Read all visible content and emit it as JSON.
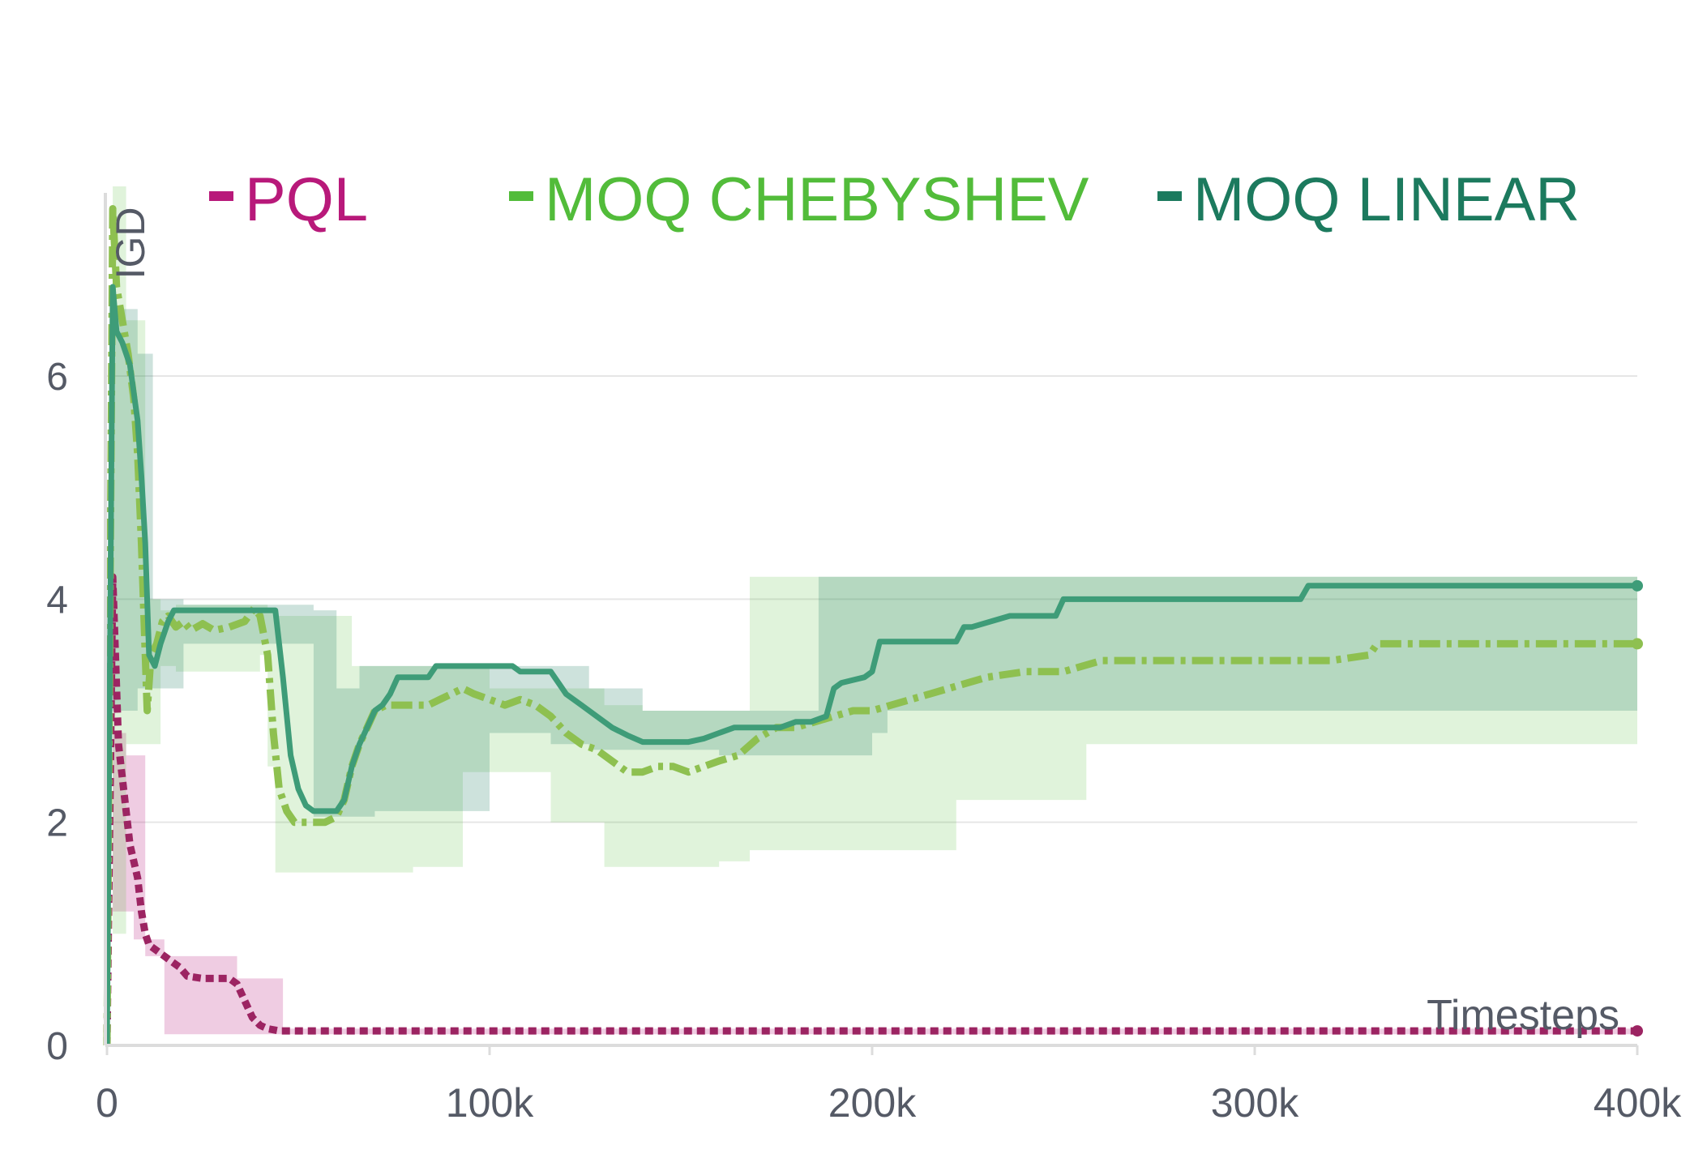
{
  "chart_data": {
    "type": "line",
    "xlabel": "Timesteps",
    "ylabel": "IGD",
    "xlim": [
      0,
      400000
    ],
    "ylim": [
      0,
      7.7
    ],
    "x_ticks": [
      0,
      100000,
      200000,
      300000,
      400000
    ],
    "x_tick_labels": [
      "0",
      "100k",
      "200k",
      "300k",
      "400k"
    ],
    "y_ticks": [
      0,
      2,
      4,
      6
    ],
    "y_tick_labels": [
      "0",
      "2",
      "4",
      "6"
    ],
    "grid": "horizontal",
    "legend_position": "top",
    "series": [
      {
        "name": "PQL",
        "color": "#b8197a",
        "line_color": "#9c2462",
        "dash": "dotted",
        "x": [
          0,
          1500,
          3000,
          6000,
          8000,
          9000,
          10000,
          11000,
          13000,
          15000,
          17000,
          19000,
          21000,
          25000,
          29000,
          32000,
          34000,
          36000,
          38000,
          40000,
          42000,
          45000,
          60000,
          100000,
          200000,
          300000,
          400000
        ],
        "y": [
          0,
          4.2,
          2.7,
          1.8,
          1.5,
          1.2,
          1.0,
          0.9,
          0.85,
          0.8,
          0.75,
          0.7,
          0.62,
          0.6,
          0.6,
          0.6,
          0.55,
          0.4,
          0.25,
          0.18,
          0.15,
          0.13,
          0.13,
          0.13,
          0.13,
          0.13,
          0.13
        ],
        "band": {
          "x": [
            1500,
            5000,
            7000,
            10000,
            15000,
            20000,
            30000,
            34000,
            36000,
            44000,
            46000,
            400000
          ],
          "lower": [
            1.2,
            1.2,
            0.95,
            0.8,
            0.1,
            0.1,
            0.1,
            0.1,
            0.1,
            0.1,
            0.1,
            0.1
          ],
          "upper": [
            2.8,
            2.6,
            2.6,
            0.95,
            0.8,
            0.8,
            0.8,
            0.6,
            0.6,
            0.6,
            0.15,
            0.15
          ]
        }
      },
      {
        "name": "MOQ CHEBYSHEV",
        "color": "#52bc3a",
        "line_color": "#8ec050",
        "dash": "dashdot",
        "x": [
          0,
          1500,
          2500,
          4000,
          5500,
          7000,
          8000,
          9000,
          10500,
          11500,
          13000,
          14500,
          16000,
          18000,
          20000,
          22000,
          25000,
          28000,
          32000,
          36000,
          38500,
          40000,
          42000,
          43500,
          45000,
          47000,
          49000,
          51000,
          54000,
          57000,
          60000,
          62000,
          64000,
          66000,
          68000,
          70000,
          73000,
          76000,
          80000,
          84000,
          87000,
          90000,
          93000,
          96000,
          100000,
          104000,
          108000,
          112000,
          116000,
          120000,
          124000,
          128000,
          132000,
          136000,
          140000,
          144000,
          148000,
          152000,
          156000,
          160000,
          165000,
          170000,
          175000,
          180000,
          185000,
          190000,
          195000,
          200000,
          205000,
          210000,
          215000,
          220000,
          225000,
          230000,
          240000,
          250000,
          255000,
          260000,
          280000,
          300000,
          320000,
          330000,
          332000,
          360000,
          400000
        ],
        "y": [
          0,
          7.5,
          6.8,
          6.5,
          6.2,
          5.8,
          5.3,
          4.5,
          3.0,
          3.5,
          3.6,
          3.8,
          3.85,
          3.75,
          3.8,
          3.72,
          3.78,
          3.72,
          3.75,
          3.8,
          3.92,
          3.85,
          3.5,
          2.8,
          2.3,
          2.1,
          2.0,
          2.0,
          2.0,
          2.0,
          2.05,
          2.2,
          2.5,
          2.7,
          2.85,
          3.0,
          3.05,
          3.05,
          3.05,
          3.05,
          3.1,
          3.15,
          3.2,
          3.15,
          3.1,
          3.05,
          3.1,
          3.05,
          2.95,
          2.8,
          2.7,
          2.65,
          2.55,
          2.45,
          2.45,
          2.5,
          2.5,
          2.45,
          2.5,
          2.55,
          2.6,
          2.75,
          2.85,
          2.85,
          2.9,
          2.95,
          3.0,
          3.0,
          3.05,
          3.1,
          3.15,
          3.2,
          3.25,
          3.3,
          3.35,
          3.35,
          3.4,
          3.45,
          3.45,
          3.45,
          3.45,
          3.5,
          3.6,
          3.6,
          3.6
        ],
        "band": {
          "x": [
            1500,
            5000,
            10000,
            14000,
            18000,
            28000,
            40000,
            42000,
            44000,
            64000,
            70000,
            80000,
            93000,
            100000,
            116000,
            130000,
            140000,
            160000,
            168000,
            188000,
            204000,
            222000,
            256000,
            400000
          ],
          "lower": [
            1.0,
            2.7,
            2.7,
            3.4,
            3.35,
            3.35,
            3.5,
            2.5,
            1.55,
            1.55,
            1.55,
            1.6,
            2.45,
            2.45,
            2.0,
            1.6,
            1.6,
            1.65,
            1.75,
            1.75,
            1.75,
            2.2,
            2.7,
            2.7
          ],
          "upper": [
            7.7,
            6.5,
            4.0,
            3.9,
            3.95,
            3.95,
            3.95,
            3.9,
            3.85,
            3.4,
            3.4,
            3.4,
            3.4,
            3.2,
            3.2,
            3.05,
            3.0,
            3.0,
            4.2,
            4.2,
            4.2,
            4.2,
            4.2,
            4.2
          ]
        }
      },
      {
        "name": "MOQ LINEAR",
        "color": "#1c7a5e",
        "line_color": "#3e9c78",
        "dash": "solid",
        "x": [
          0,
          1500,
          2500,
          4000,
          6000,
          8000,
          9000,
          10000,
          11000,
          12500,
          14000,
          16000,
          17500,
          20000,
          30000,
          40000,
          44000,
          46000,
          48000,
          50000,
          52000,
          54000,
          56000,
          58000,
          60000,
          62000,
          64000,
          66000,
          68000,
          70000,
          72000,
          74000,
          76000,
          80000,
          84000,
          86000,
          90000,
          100000,
          106000,
          108000,
          116000,
          118000,
          120000,
          124000,
          128000,
          132000,
          136000,
          140000,
          144000,
          148000,
          152000,
          156000,
          160000,
          164000,
          168000,
          172000,
          176000,
          180000,
          184000,
          188000,
          190000,
          192000,
          198000,
          200000,
          202000,
          212000,
          222000,
          224000,
          226000,
          236000,
          248000,
          250000,
          260000,
          270000,
          290000,
          312000,
          314000,
          340000,
          370000,
          400000
        ],
        "y": [
          0,
          6.8,
          6.4,
          6.3,
          6.1,
          5.6,
          5.1,
          4.5,
          3.5,
          3.4,
          3.6,
          3.8,
          3.9,
          3.9,
          3.9,
          3.9,
          3.9,
          3.3,
          2.6,
          2.3,
          2.15,
          2.1,
          2.1,
          2.1,
          2.1,
          2.2,
          2.5,
          2.7,
          2.85,
          3.0,
          3.05,
          3.15,
          3.3,
          3.3,
          3.3,
          3.4,
          3.4,
          3.4,
          3.4,
          3.35,
          3.35,
          3.25,
          3.15,
          3.05,
          2.95,
          2.85,
          2.78,
          2.72,
          2.72,
          2.72,
          2.72,
          2.75,
          2.8,
          2.85,
          2.85,
          2.85,
          2.85,
          2.9,
          2.9,
          2.95,
          3.2,
          3.25,
          3.3,
          3.35,
          3.62,
          3.62,
          3.62,
          3.75,
          3.75,
          3.85,
          3.85,
          4.0,
          4.0,
          4.0,
          4.0,
          4.0,
          4.12,
          4.12,
          4.12,
          4.12
        ],
        "band": {
          "x": [
            1500,
            8000,
            12000,
            20000,
            44000,
            54000,
            60000,
            66000,
            70000,
            80000,
            100000,
            116000,
            126000,
            132000,
            140000,
            148000,
            160000,
            168000,
            186000,
            190000,
            200000,
            204000,
            220000,
            260000,
            400000
          ],
          "lower": [
            3.0,
            3.2,
            3.2,
            3.6,
            3.6,
            2.05,
            2.05,
            2.05,
            2.1,
            2.1,
            2.8,
            2.7,
            2.65,
            2.65,
            2.65,
            2.65,
            2.6,
            2.6,
            2.6,
            2.6,
            2.8,
            3.0,
            3.0,
            3.0,
            3.0
          ],
          "upper": [
            6.6,
            6.2,
            4.0,
            3.95,
            3.95,
            3.9,
            3.2,
            3.4,
            3.4,
            3.4,
            3.4,
            3.4,
            3.2,
            3.2,
            3.0,
            3.0,
            3.0,
            3.0,
            4.2,
            4.2,
            4.2,
            4.2,
            4.2,
            4.2,
            4.2
          ]
        }
      }
    ]
  }
}
